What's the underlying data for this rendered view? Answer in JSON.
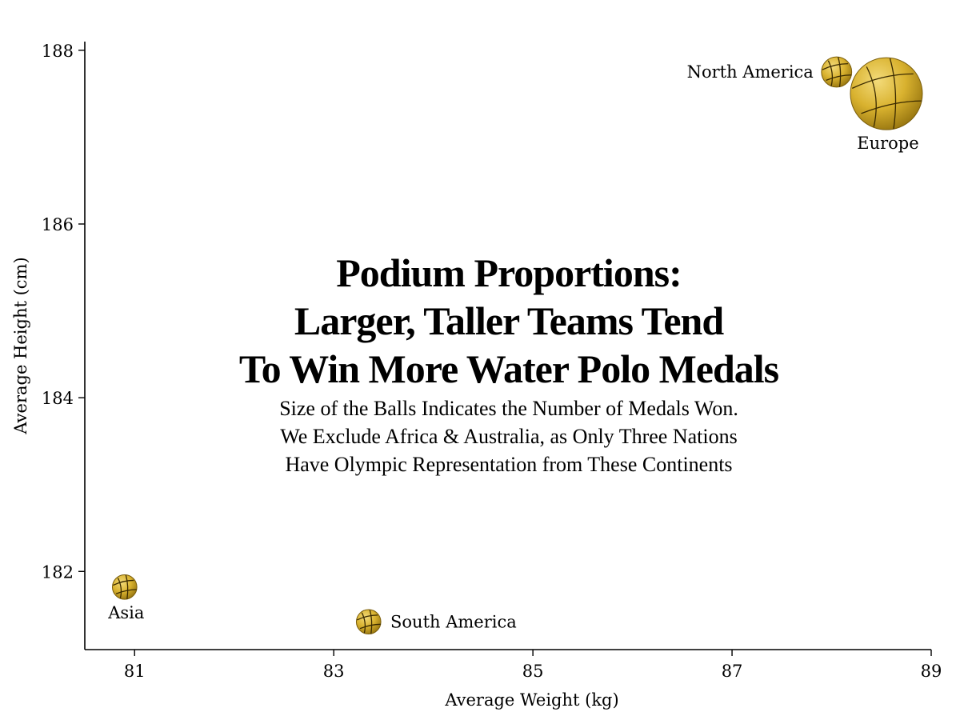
{
  "chart_data": {
    "type": "scatter",
    "title": [
      "Podium Proportions:",
      "Larger, Taller Teams Tend",
      "To Win More Water Polo Medals"
    ],
    "subtitle": [
      "Size of the Balls Indicates the Number of Medals Won.",
      "We Exclude Africa & Australia, as Only Three Nations",
      "Have Olympic Representation from These Continents"
    ],
    "xlabel": "Average Weight (kg)",
    "ylabel": "Average Height (cm)",
    "xlim": [
      80.5,
      89
    ],
    "ylim": [
      181.1,
      188.1
    ],
    "xticks": [
      "81",
      "83",
      "85",
      "87",
      "89"
    ],
    "yticks": [
      "182",
      "184",
      "186",
      "188"
    ],
    "grid": false,
    "marker": "water-polo-ball",
    "points": [
      {
        "label": "North America",
        "x": 88.05,
        "y": 187.75,
        "size": 0.42,
        "label_pos": "left"
      },
      {
        "label": "Europe",
        "x": 88.55,
        "y": 187.5,
        "size": 1.0,
        "label_pos": "below"
      },
      {
        "label": "Asia",
        "x": 80.9,
        "y": 181.82,
        "size": 0.34,
        "label_pos": "below"
      },
      {
        "label": "South America",
        "x": 83.35,
        "y": 181.42,
        "size": 0.34,
        "label_pos": "right"
      }
    ],
    "ball_color": "#E0B833"
  }
}
